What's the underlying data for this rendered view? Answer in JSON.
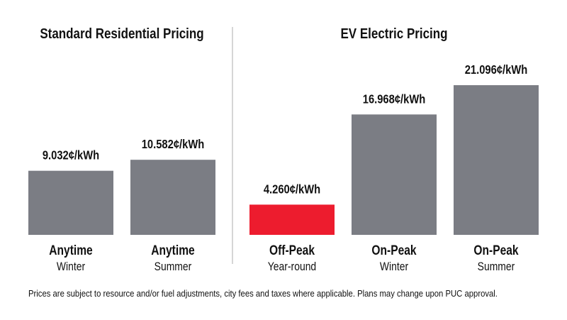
{
  "chart_data": {
    "type": "bar",
    "unit": "¢/kWh",
    "groups": [
      {
        "title": "Standard Residential Pricing",
        "bars": [
          {
            "label": "Anytime",
            "sublabel": "Winter",
            "value": 9.032,
            "value_label": "9.032¢/kWh",
            "color": "#7b7d84"
          },
          {
            "label": "Anytime",
            "sublabel": "Summer",
            "value": 10.582,
            "value_label": "10.582¢/kWh",
            "color": "#7b7d84"
          }
        ]
      },
      {
        "title": "EV Electric Pricing",
        "bars": [
          {
            "label": "Off-Peak",
            "sublabel": "Year-round",
            "value": 4.26,
            "value_label": "4.260¢/kWh",
            "color": "#ed1c2e"
          },
          {
            "label": "On-Peak",
            "sublabel": "Winter",
            "value": 16.968,
            "value_label": "16.968¢/kWh",
            "color": "#7b7d84"
          },
          {
            "label": "On-Peak",
            "sublabel": "Summer",
            "value": 21.096,
            "value_label": "21.096¢/kWh",
            "color": "#7b7d84"
          }
        ]
      }
    ],
    "ylim": [
      0,
      22
    ],
    "grid": false
  },
  "footnote": "Prices are subject to resource and/or fuel adjustments, city fees and taxes where applicable. Plans may change upon PUC approval."
}
